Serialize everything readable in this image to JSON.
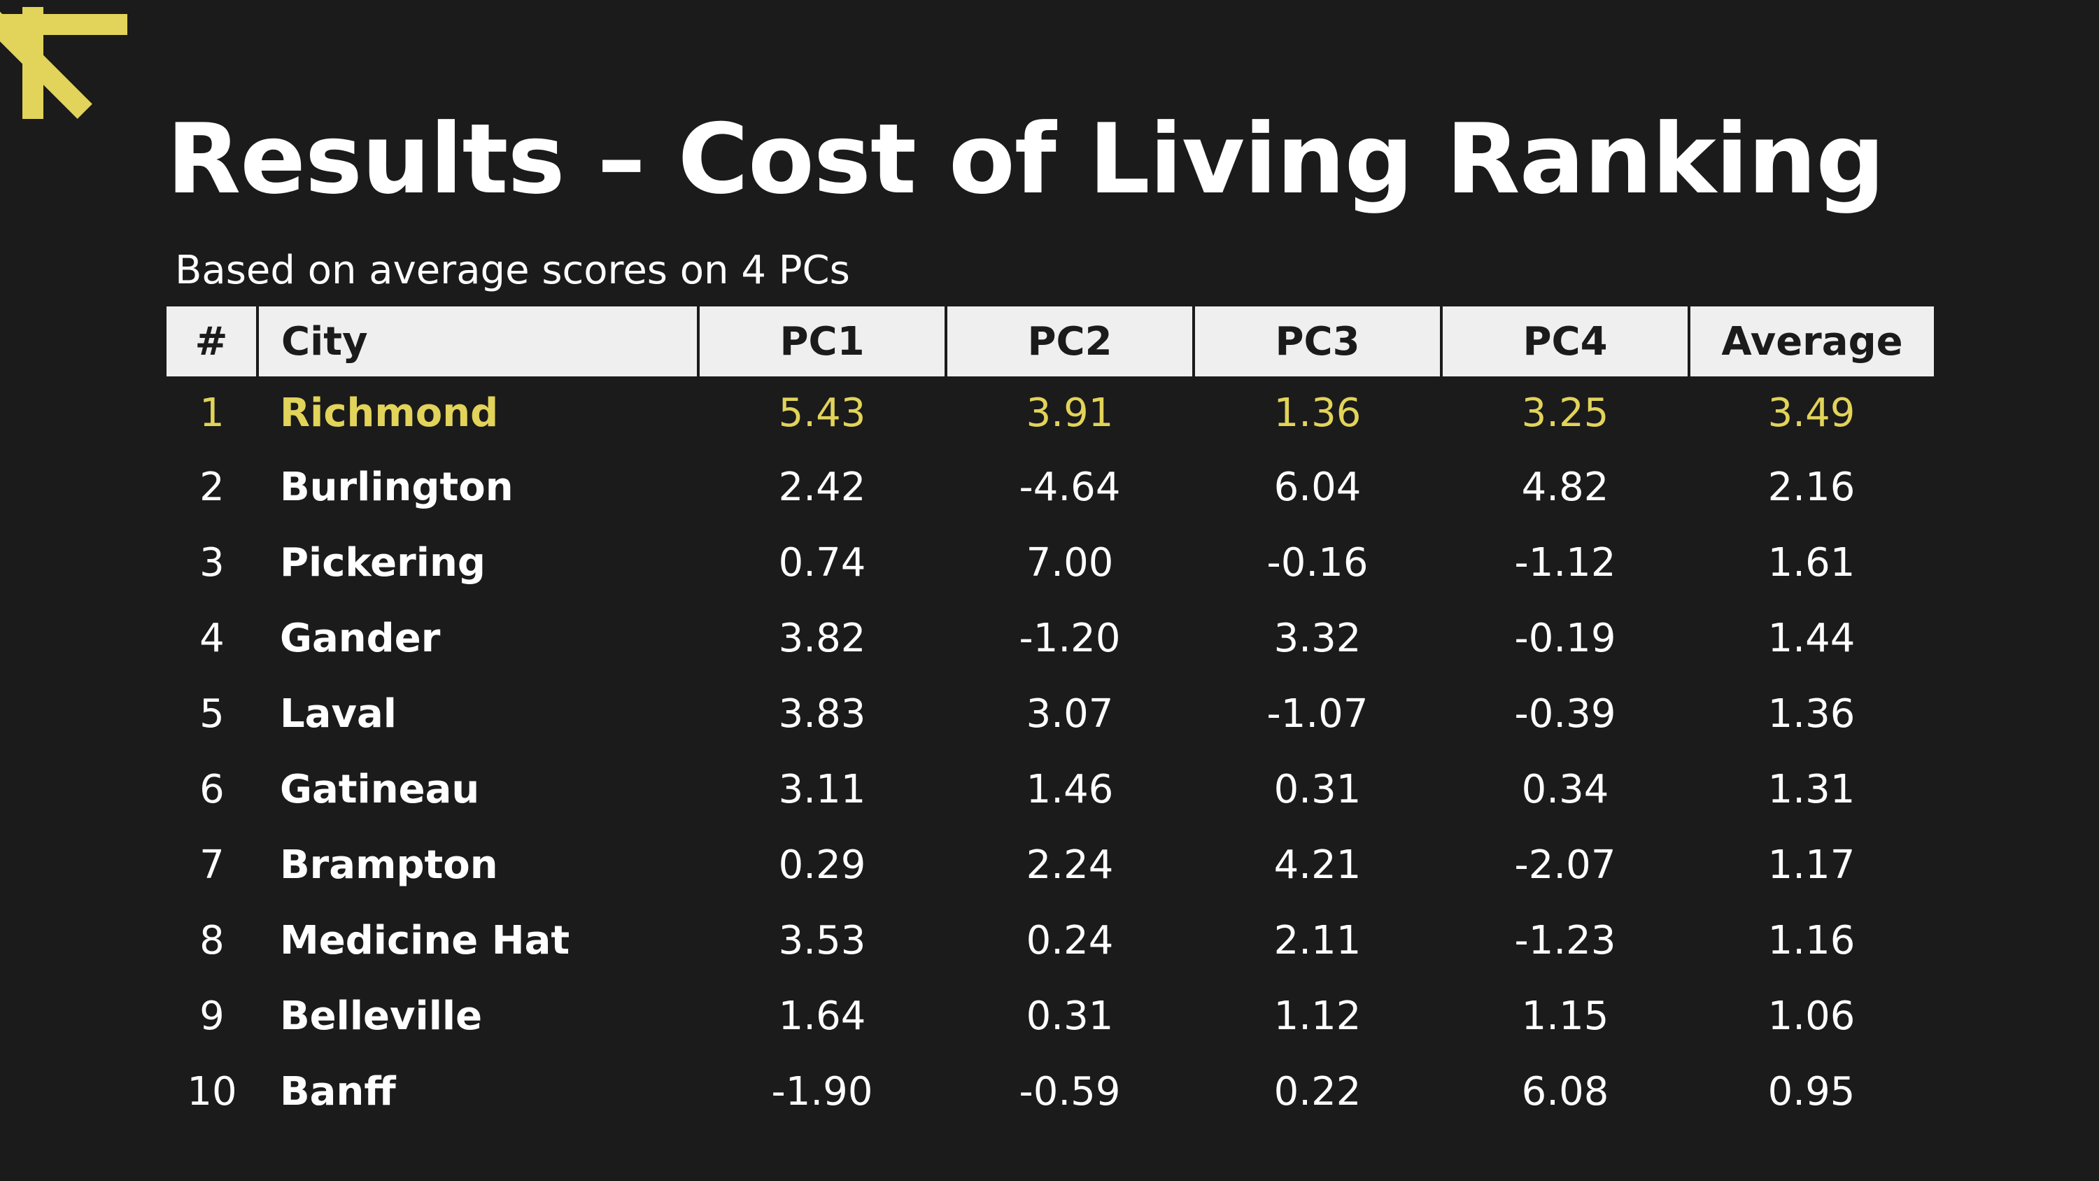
{
  "slide": {
    "title": "Results – Cost of Living Ranking",
    "subtitle": "Based on average scores on 4 PCs",
    "accent_color": "#e2d35a",
    "background_color": "#1b1b1b",
    "decoration_icon": "asterisk-icon"
  },
  "table": {
    "headers": {
      "rank": "#",
      "city": "City",
      "pc1": "PC1",
      "pc2": "PC2",
      "pc3": "PC3",
      "pc4": "PC4",
      "average": "Average"
    },
    "rows": [
      {
        "rank": "1",
        "city": "Richmond",
        "pc1": "5.43",
        "pc2": "3.91",
        "pc3": "1.36",
        "pc4": "3.25",
        "average": "3.49"
      },
      {
        "rank": "2",
        "city": "Burlington",
        "pc1": "2.42",
        "pc2": "-4.64",
        "pc3": "6.04",
        "pc4": "4.82",
        "average": "2.16"
      },
      {
        "rank": "3",
        "city": "Pickering",
        "pc1": "0.74",
        "pc2": "7.00",
        "pc3": "-0.16",
        "pc4": "-1.12",
        "average": "1.61"
      },
      {
        "rank": "4",
        "city": "Gander",
        "pc1": "3.82",
        "pc2": "-1.20",
        "pc3": "3.32",
        "pc4": "-0.19",
        "average": "1.44"
      },
      {
        "rank": "5",
        "city": "Laval",
        "pc1": "3.83",
        "pc2": "3.07",
        "pc3": "-1.07",
        "pc4": "-0.39",
        "average": "1.36"
      },
      {
        "rank": "6",
        "city": "Gatineau",
        "pc1": "3.11",
        "pc2": "1.46",
        "pc3": "0.31",
        "pc4": "0.34",
        "average": "1.31"
      },
      {
        "rank": "7",
        "city": "Brampton",
        "pc1": "0.29",
        "pc2": "2.24",
        "pc3": "4.21",
        "pc4": "-2.07",
        "average": "1.17"
      },
      {
        "rank": "8",
        "city": "Medicine Hat",
        "pc1": "3.53",
        "pc2": "0.24",
        "pc3": "2.11",
        "pc4": "-1.23",
        "average": "1.16"
      },
      {
        "rank": "9",
        "city": "Belleville",
        "pc1": "1.64",
        "pc2": "0.31",
        "pc3": "1.12",
        "pc4": "1.15",
        "average": "1.06"
      },
      {
        "rank": "10",
        "city": "Banff",
        "pc1": "-1.90",
        "pc2": "-0.59",
        "pc3": "0.22",
        "pc4": "6.08",
        "average": "0.95"
      }
    ]
  }
}
